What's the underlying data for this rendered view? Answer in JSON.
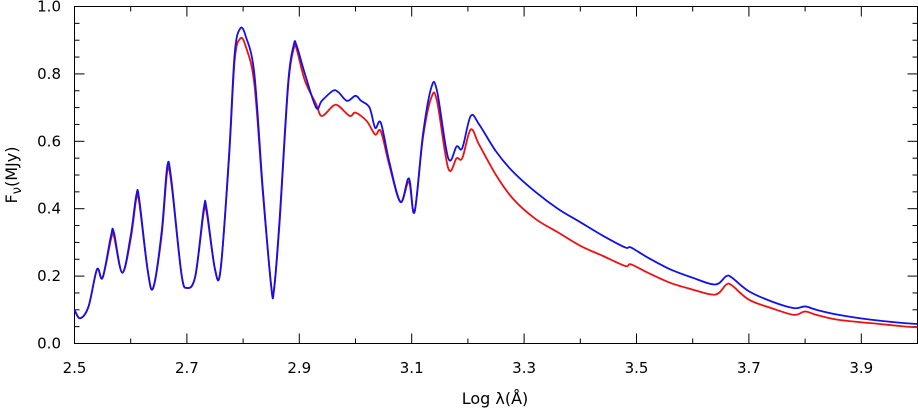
{
  "chart_data": {
    "type": "line",
    "title": "",
    "xlabel": "Log λ(Å)",
    "ylabel_main": "F",
    "ylabel_sub": "ν",
    "ylabel_unit": "(MJy)",
    "xlim": [
      2.5,
      4.0
    ],
    "ylim": [
      0.0,
      1.0
    ],
    "x_ticks_labeled": [
      "2.5",
      "2.7",
      "2.9",
      "3.1",
      "3.3",
      "3.5",
      "3.7",
      "3.9"
    ],
    "y_ticks_labeled": [
      "0.0",
      "0.2",
      "0.4",
      "0.6",
      "0.8",
      "1.0"
    ],
    "grid": false,
    "legend": "none",
    "series": [
      {
        "color": "#ee1111",
        "points": [
          [
            2.5,
            0.1
          ],
          [
            2.51,
            0.075
          ],
          [
            2.525,
            0.11
          ],
          [
            2.54,
            0.22
          ],
          [
            2.55,
            0.195
          ],
          [
            2.565,
            0.31
          ],
          [
            2.57,
            0.32
          ],
          [
            2.585,
            0.21
          ],
          [
            2.6,
            0.31
          ],
          [
            2.61,
            0.43
          ],
          [
            2.615,
            0.42
          ],
          [
            2.63,
            0.22
          ],
          [
            2.64,
            0.165
          ],
          [
            2.655,
            0.32
          ],
          [
            2.665,
            0.51
          ],
          [
            2.672,
            0.48
          ],
          [
            2.69,
            0.21
          ],
          [
            2.7,
            0.165
          ],
          [
            2.715,
            0.2
          ],
          [
            2.73,
            0.39
          ],
          [
            2.735,
            0.39
          ],
          [
            2.75,
            0.22
          ],
          [
            2.76,
            0.22
          ],
          [
            2.775,
            0.55
          ],
          [
            2.785,
            0.84
          ],
          [
            2.795,
            0.905
          ],
          [
            2.805,
            0.88
          ],
          [
            2.82,
            0.77
          ],
          [
            2.835,
            0.45
          ],
          [
            2.85,
            0.17
          ],
          [
            2.855,
            0.16
          ],
          [
            2.865,
            0.36
          ],
          [
            2.88,
            0.76
          ],
          [
            2.89,
            0.875
          ],
          [
            2.895,
            0.875
          ],
          [
            2.91,
            0.78
          ],
          [
            2.93,
            0.71
          ],
          [
            2.94,
            0.675
          ],
          [
            2.96,
            0.705
          ],
          [
            2.97,
            0.705
          ],
          [
            2.99,
            0.675
          ],
          [
            3.0,
            0.685
          ],
          [
            3.02,
            0.66
          ],
          [
            3.035,
            0.62
          ],
          [
            3.045,
            0.63
          ],
          [
            3.06,
            0.53
          ],
          [
            3.08,
            0.42
          ],
          [
            3.095,
            0.48
          ],
          [
            3.105,
            0.39
          ],
          [
            3.12,
            0.61
          ],
          [
            3.135,
            0.73
          ],
          [
            3.145,
            0.72
          ],
          [
            3.165,
            0.52
          ],
          [
            3.18,
            0.55
          ],
          [
            3.19,
            0.55
          ],
          [
            3.205,
            0.635
          ],
          [
            3.22,
            0.59
          ],
          [
            3.25,
            0.5
          ],
          [
            3.28,
            0.43
          ],
          [
            3.32,
            0.37
          ],
          [
            3.36,
            0.33
          ],
          [
            3.4,
            0.29
          ],
          [
            3.44,
            0.26
          ],
          [
            3.48,
            0.23
          ],
          [
            3.49,
            0.235
          ],
          [
            3.52,
            0.21
          ],
          [
            3.56,
            0.18
          ],
          [
            3.6,
            0.16
          ],
          [
            3.64,
            0.145
          ],
          [
            3.66,
            0.175
          ],
          [
            3.67,
            0.172
          ],
          [
            3.7,
            0.13
          ],
          [
            3.74,
            0.105
          ],
          [
            3.78,
            0.085
          ],
          [
            3.8,
            0.095
          ],
          [
            3.82,
            0.085
          ],
          [
            3.86,
            0.07
          ],
          [
            3.92,
            0.06
          ],
          [
            3.98,
            0.05
          ],
          [
            4.0,
            0.048
          ]
        ]
      },
      {
        "color": "#1111ee",
        "points": [
          [
            2.5,
            0.1
          ],
          [
            2.51,
            0.075
          ],
          [
            2.525,
            0.11
          ],
          [
            2.54,
            0.22
          ],
          [
            2.55,
            0.195
          ],
          [
            2.565,
            0.32
          ],
          [
            2.57,
            0.33
          ],
          [
            2.585,
            0.21
          ],
          [
            2.6,
            0.32
          ],
          [
            2.61,
            0.44
          ],
          [
            2.615,
            0.43
          ],
          [
            2.63,
            0.22
          ],
          [
            2.64,
            0.165
          ],
          [
            2.655,
            0.33
          ],
          [
            2.665,
            0.525
          ],
          [
            2.672,
            0.49
          ],
          [
            2.69,
            0.21
          ],
          [
            2.7,
            0.165
          ],
          [
            2.715,
            0.2
          ],
          [
            2.73,
            0.4
          ],
          [
            2.735,
            0.4
          ],
          [
            2.75,
            0.22
          ],
          [
            2.76,
            0.22
          ],
          [
            2.775,
            0.56
          ],
          [
            2.785,
            0.86
          ],
          [
            2.795,
            0.935
          ],
          [
            2.805,
            0.91
          ],
          [
            2.82,
            0.8
          ],
          [
            2.835,
            0.46
          ],
          [
            2.85,
            0.17
          ],
          [
            2.855,
            0.16
          ],
          [
            2.865,
            0.37
          ],
          [
            2.88,
            0.77
          ],
          [
            2.89,
            0.885
          ],
          [
            2.895,
            0.885
          ],
          [
            2.91,
            0.8
          ],
          [
            2.93,
            0.7
          ],
          [
            2.94,
            0.72
          ],
          [
            2.96,
            0.75
          ],
          [
            2.97,
            0.745
          ],
          [
            2.985,
            0.72
          ],
          [
            3.0,
            0.735
          ],
          [
            3.01,
            0.72
          ],
          [
            3.025,
            0.7
          ],
          [
            3.035,
            0.64
          ],
          [
            3.045,
            0.655
          ],
          [
            3.06,
            0.54
          ],
          [
            3.08,
            0.42
          ],
          [
            3.095,
            0.49
          ],
          [
            3.105,
            0.39
          ],
          [
            3.12,
            0.62
          ],
          [
            3.135,
            0.76
          ],
          [
            3.145,
            0.75
          ],
          [
            3.165,
            0.55
          ],
          [
            3.18,
            0.585
          ],
          [
            3.19,
            0.58
          ],
          [
            3.205,
            0.675
          ],
          [
            3.22,
            0.65
          ],
          [
            3.25,
            0.57
          ],
          [
            3.28,
            0.51
          ],
          [
            3.32,
            0.45
          ],
          [
            3.36,
            0.4
          ],
          [
            3.4,
            0.36
          ],
          [
            3.44,
            0.32
          ],
          [
            3.48,
            0.285
          ],
          [
            3.49,
            0.285
          ],
          [
            3.52,
            0.255
          ],
          [
            3.56,
            0.22
          ],
          [
            3.6,
            0.195
          ],
          [
            3.64,
            0.175
          ],
          [
            3.66,
            0.2
          ],
          [
            3.67,
            0.195
          ],
          [
            3.7,
            0.155
          ],
          [
            3.74,
            0.125
          ],
          [
            3.78,
            0.105
          ],
          [
            3.8,
            0.11
          ],
          [
            3.82,
            0.1
          ],
          [
            3.86,
            0.085
          ],
          [
            3.92,
            0.07
          ],
          [
            3.98,
            0.06
          ],
          [
            4.0,
            0.058
          ]
        ]
      }
    ]
  }
}
